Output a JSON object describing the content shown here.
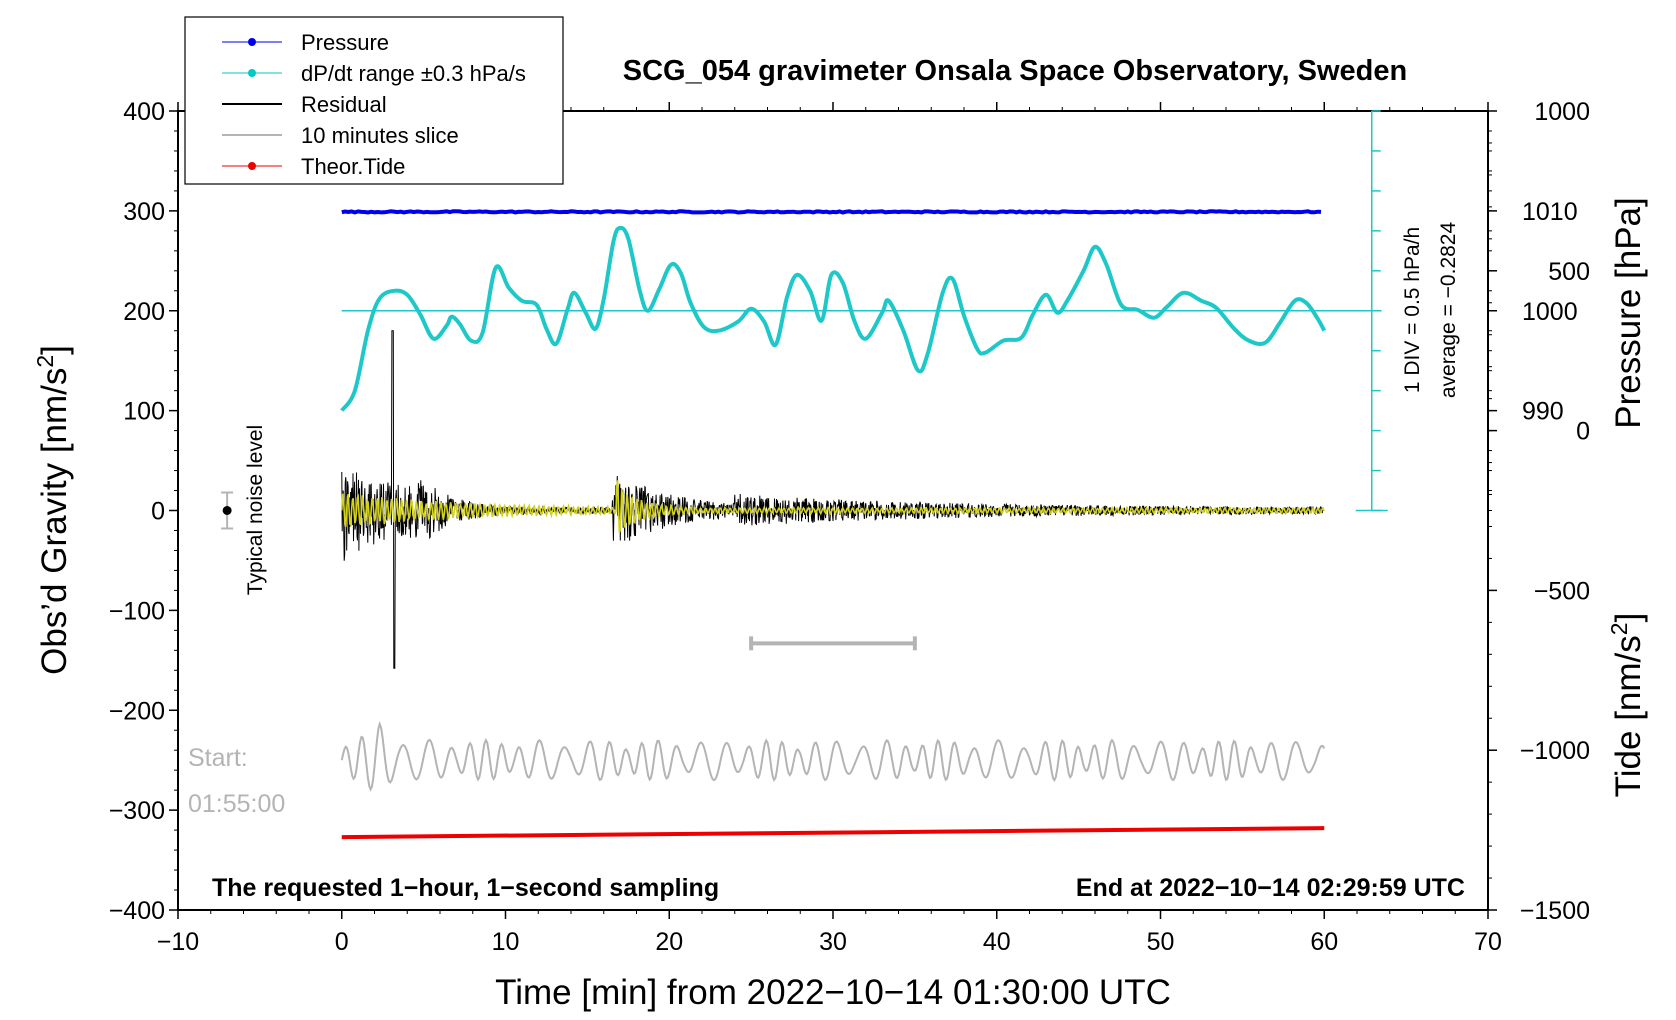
{
  "chart_data": {
    "type": "line",
    "title": "SCG_054 gravimeter Onsala Space Observatory, Sweden",
    "xlabel": "Time [min] from 2022−10−14 01:30:00 UTC",
    "ylabel_left": "Obs’d Gravity [nm/s",
    "ylabel_right_pressure": "Pressure [hPa]",
    "ylabel_right_tide": "Tide [nm/s",
    "superscript_2": "2",
    "xlim": [
      -10,
      70
    ],
    "ylim": [
      -400,
      400
    ],
    "x_ticks": [
      -10,
      0,
      10,
      20,
      30,
      40,
      50,
      60,
      70
    ],
    "x_tick_labels": [
      "−10",
      "0",
      "10",
      "20",
      "30",
      "40",
      "50",
      "60",
      "70"
    ],
    "y_ticks": [
      -400,
      -300,
      -200,
      -100,
      0,
      100,
      200,
      300,
      400
    ],
    "y_tick_labels": [
      "−400",
      "−300",
      "−200",
      "−100",
      "0",
      "100",
      "200",
      "300",
      "400"
    ],
    "pressure_axis": {
      "ticks_hpa": [
        990,
        1000,
        1010
      ],
      "tick_labels": [
        "990",
        "1000",
        "1010"
      ],
      "gravity_equiv": [
        100,
        200,
        300
      ],
      "series_level_hpa": 1010
    },
    "tide_axis": {
      "ylim": [
        -1500,
        1000
      ],
      "ticks": [
        -1500,
        -1000,
        -500,
        0,
        500,
        1000
      ],
      "tick_labels": [
        "−1500",
        "−1000",
        "−500",
        "0",
        "500",
        "1000"
      ]
    },
    "dpdt_scale": {
      "label1": "1 DIV = 0.5 hPa/h",
      "label2": "average = −0.2824",
      "zero_level": 200
    },
    "legend": [
      {
        "label": "Pressure",
        "color": "#0000ee",
        "marker": true
      },
      {
        "label": "dP/dt range ±0.3 hPa/s",
        "color": "#00c8c8",
        "marker": true
      },
      {
        "label": "Residual",
        "color": "#000000",
        "marker": false
      },
      {
        "label": "10 minutes slice",
        "color": "#b4b4b4",
        "marker": false
      },
      {
        "label": "Theor.Tide",
        "color": "#ee0000",
        "marker": true
      }
    ],
    "series": [
      {
        "name": "Pressure",
        "color": "#0000ee",
        "x": [
          0,
          60
        ],
        "values": [
          299,
          299
        ]
      },
      {
        "name": "dP/dt",
        "color": "#1ec8c8",
        "points": [
          [
            0,
            100
          ],
          [
            0.8,
            120
          ],
          [
            1.6,
            180
          ],
          [
            2.3,
            212
          ],
          [
            3.2,
            220
          ],
          [
            4.0,
            216
          ],
          [
            4.8,
            196
          ],
          [
            5.6,
            172
          ],
          [
            6.4,
            185
          ],
          [
            6.7,
            194
          ],
          [
            7.2,
            187
          ],
          [
            7.9,
            170
          ],
          [
            8.6,
            178
          ],
          [
            9.4,
            243
          ],
          [
            10.2,
            223
          ],
          [
            11.0,
            210
          ],
          [
            11.9,
            206
          ],
          [
            12.5,
            182
          ],
          [
            13.1,
            167
          ],
          [
            13.8,
            202
          ],
          [
            14.2,
            218
          ],
          [
            14.9,
            198
          ],
          [
            15.5,
            182
          ],
          [
            16.0,
            212
          ],
          [
            16.6,
            270
          ],
          [
            17.0,
            283
          ],
          [
            17.5,
            272
          ],
          [
            18.2,
            220
          ],
          [
            18.7,
            200
          ],
          [
            19.4,
            222
          ],
          [
            20.1,
            246
          ],
          [
            20.7,
            238
          ],
          [
            21.3,
            208
          ],
          [
            22.1,
            184
          ],
          [
            23.0,
            180
          ],
          [
            24.2,
            189
          ],
          [
            25.0,
            202
          ],
          [
            25.8,
            189
          ],
          [
            26.5,
            166
          ],
          [
            27.2,
            214
          ],
          [
            27.8,
            236
          ],
          [
            28.6,
            220
          ],
          [
            29.3,
            190
          ],
          [
            29.9,
            236
          ],
          [
            30.6,
            228
          ],
          [
            31.3,
            190
          ],
          [
            32.0,
            172
          ],
          [
            33.0,
            198
          ],
          [
            33.4,
            210
          ],
          [
            34.3,
            180
          ],
          [
            35.2,
            140
          ],
          [
            35.8,
            158
          ],
          [
            36.7,
            218
          ],
          [
            37.3,
            232
          ],
          [
            38.0,
            195
          ],
          [
            38.8,
            162
          ],
          [
            39.3,
            158
          ],
          [
            40.4,
            170
          ],
          [
            41.5,
            173
          ],
          [
            42.2,
            196
          ],
          [
            43.0,
            216
          ],
          [
            43.7,
            198
          ],
          [
            44.3,
            210
          ],
          [
            45.3,
            240
          ],
          [
            46.0,
            264
          ],
          [
            46.7,
            246
          ],
          [
            47.6,
            206
          ],
          [
            48.6,
            201
          ],
          [
            49.6,
            193
          ],
          [
            50.4,
            204
          ],
          [
            51.4,
            218
          ],
          [
            52.5,
            210
          ],
          [
            53.4,
            203
          ],
          [
            54.5,
            182
          ],
          [
            55.4,
            170
          ],
          [
            56.4,
            168
          ],
          [
            57.3,
            188
          ],
          [
            58.2,
            210
          ],
          [
            58.9,
            208
          ],
          [
            59.6,
            192
          ],
          [
            60,
            180
          ]
        ]
      },
      {
        "name": "Residual",
        "color": "#000000"
      },
      {
        "name": "10 minutes slice",
        "color": "#b4b4b4",
        "offset": -250
      },
      {
        "name": "Theor.Tide",
        "color": "#ee0000",
        "x": [
          0,
          60
        ],
        "values": [
          -327,
          -318
        ]
      }
    ],
    "noise_bar": {
      "label": "Typical noise level",
      "x": -7,
      "center": 0,
      "half_range": 18
    },
    "slice_window": {
      "start_min": 25,
      "end_min": 35,
      "level": -133
    },
    "slice_start": {
      "label_line1": "Start:",
      "label_line2": "01:55:00"
    },
    "footer_left": "The requested 1−hour, 1−second sampling",
    "footer_right": "End at 2022−10−14 02:29:59 UTC"
  }
}
